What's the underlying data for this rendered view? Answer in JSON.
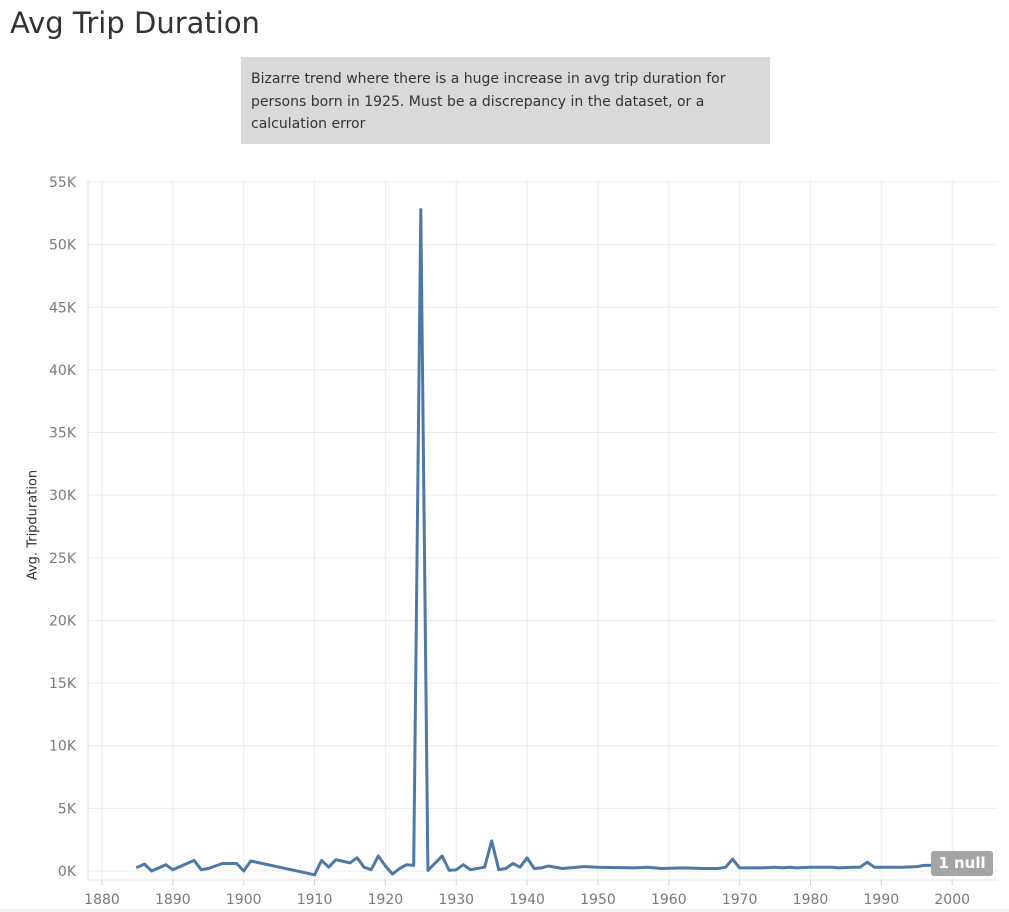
{
  "title": "Avg Trip Duration",
  "annotation": {
    "lines": [
      "Bizarre trend where there is a huge increase in avg trip duration for",
      "persons born in 1925. Must be a discrepancy in the dataset, or a",
      "calculation error"
    ]
  },
  "null_badge": "1 null",
  "chart_data": {
    "type": "line",
    "title": "Avg Trip Duration",
    "xlabel": "",
    "ylabel": "Avg. Tripduration",
    "xlim": [
      1878,
      2008
    ],
    "ylim": [
      0,
      55000
    ],
    "x_ticks": [
      "1880",
      "1890",
      "1900",
      "1910",
      "1920",
      "1930",
      "1940",
      "1950",
      "1960",
      "1970",
      "1980",
      "1990",
      "2000"
    ],
    "y_ticks": [
      "0K",
      "5K",
      "10K",
      "15K",
      "20K",
      "25K",
      "30K",
      "35K",
      "40K",
      "45K",
      "50K",
      "55K"
    ],
    "grid": true,
    "line_color": "#4e79a7",
    "series": [
      {
        "x": [
          1885,
          1886,
          1887,
          1889,
          1890,
          1893,
          1894,
          1895,
          1897,
          1899,
          1900,
          1901,
          1910,
          1911,
          1912,
          1913,
          1915,
          1916,
          1917,
          1918,
          1919,
          1920,
          1921,
          1922,
          1923,
          1924,
          1925,
          1926,
          1928,
          1929,
          1930,
          1931,
          1932,
          1934,
          1935,
          1936,
          1937,
          1938,
          1939,
          1940,
          1941,
          1942,
          1943,
          1945,
          1947,
          1948,
          1950,
          1955,
          1957,
          1959,
          1962,
          1965,
          1967,
          1968,
          1969,
          1970,
          1973,
          1975,
          1976,
          1977,
          1978,
          1980,
          1983,
          1984,
          1986,
          1987,
          1988,
          1989,
          1991,
          1993,
          1995,
          1996,
          1997,
          1998,
          1999,
          2000
        ],
        "y": [
          300,
          550,
          0,
          500,
          100,
          850,
          100,
          200,
          600,
          600,
          0,
          800,
          -300,
          850,
          300,
          900,
          650,
          1050,
          300,
          100,
          1200,
          400,
          -250,
          200,
          500,
          450,
          52800,
          50,
          1200,
          50,
          100,
          500,
          100,
          300,
          2400,
          100,
          200,
          600,
          300,
          1050,
          200,
          250,
          400,
          200,
          300,
          350,
          300,
          250,
          300,
          200,
          250,
          200,
          200,
          300,
          950,
          250,
          250,
          300,
          250,
          300,
          250,
          300,
          300,
          250,
          300,
          300,
          700,
          300,
          300,
          300,
          350,
          450,
          450,
          550,
          600,
          350
        ]
      }
    ]
  }
}
